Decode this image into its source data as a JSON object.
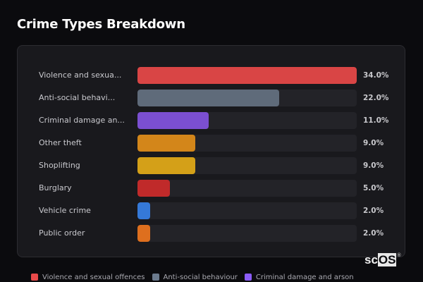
{
  "header": {
    "title": "Crime Types Breakdown"
  },
  "chart_data": {
    "type": "bar",
    "orientation": "horizontal",
    "title": "Crime Types Breakdown",
    "xlabel": "",
    "ylabel": "",
    "unit": "%",
    "xlim": [
      0,
      34
    ],
    "categories": [
      "Violence and sexual offences",
      "Anti-social behaviour",
      "Criminal damage and arson",
      "Other theft",
      "Shoplifting",
      "Burglary",
      "Vehicle crime",
      "Public order"
    ],
    "display_labels": [
      "Violence and sexua...",
      "Anti-social behavi...",
      "Criminal damage an...",
      "Other theft",
      "Shoplifting",
      "Burglary",
      "Vehicle crime",
      "Public order"
    ],
    "values": [
      34.0,
      22.0,
      11.0,
      9.0,
      9.0,
      5.0,
      2.0,
      2.0
    ],
    "value_labels": [
      "34.0%",
      "22.0%",
      "11.0%",
      "9.0%",
      "9.0%",
      "5.0%",
      "2.0%",
      "2.0%"
    ],
    "colors": [
      "#d94545",
      "#5f6b7a",
      "#7b4fd1",
      "#d3861a",
      "#d4a018",
      "#c02a2a",
      "#3579d8",
      "#de6f1e"
    ],
    "legend": {
      "position": "bottom",
      "entries": [
        {
          "label": "Violence and sexual offences",
          "color": "#e84a4a"
        },
        {
          "label": "Anti-social behaviour",
          "color": "#6b7a8d"
        },
        {
          "label": "Criminal damage and arson",
          "color": "#8b5cf6"
        }
      ]
    },
    "grid": false
  },
  "rows": [
    {
      "label": "Violence and sexua...",
      "pct": "34.0%",
      "value": 34.0,
      "color": "#d94545"
    },
    {
      "label": "Anti-social behavi...",
      "pct": "22.0%",
      "value": 22.0,
      "color": "#5f6b7a"
    },
    {
      "label": "Criminal damage an...",
      "pct": "11.0%",
      "value": 11.0,
      "color": "#7b4fd1"
    },
    {
      "label": "Other theft",
      "pct": "9.0%",
      "value": 9.0,
      "color": "#d3861a"
    },
    {
      "label": "Shoplifting",
      "pct": "9.0%",
      "value": 9.0,
      "color": "#d4a018"
    },
    {
      "label": "Burglary",
      "pct": "5.0%",
      "value": 5.0,
      "color": "#c02a2a"
    },
    {
      "label": "Vehicle crime",
      "pct": "2.0%",
      "value": 2.0,
      "color": "#3579d8"
    },
    {
      "label": "Public order",
      "pct": "2.0%",
      "value": 2.0,
      "color": "#de6f1e"
    }
  ],
  "legend": [
    {
      "label": "Violence and sexual offences",
      "color": "#e84a4a"
    },
    {
      "label": "Anti-social behaviour",
      "color": "#6b7a8d"
    },
    {
      "label": "Criminal damage and arson",
      "color": "#8b5cf6"
    }
  ],
  "watermark": {
    "prefix": "sc",
    "highlight": "OS",
    "mark": "®"
  }
}
